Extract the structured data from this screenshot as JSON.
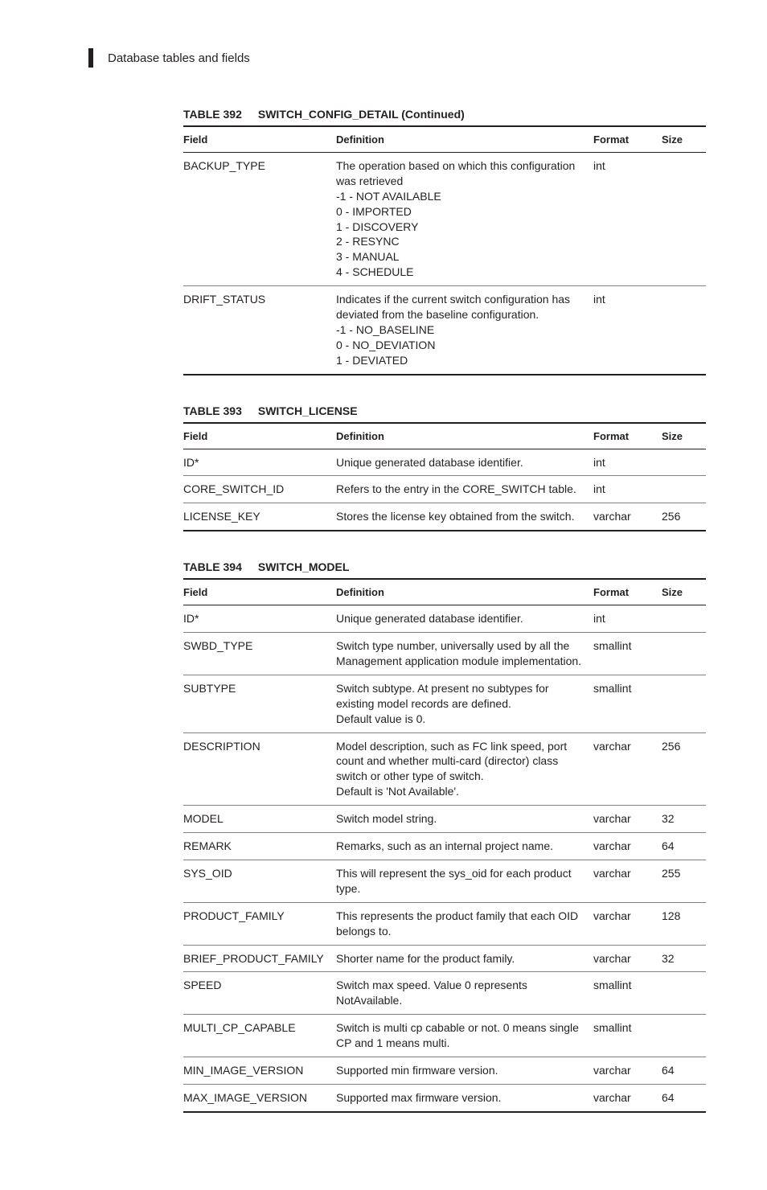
{
  "header": {
    "title": "Database tables and fields"
  },
  "columns": {
    "field": "Field",
    "definition": "Definition",
    "format": "Format",
    "size": "Size"
  },
  "tables": [
    {
      "number": "TABLE 392",
      "title": "SWITCH_CONFIG_DETAIL (Continued)",
      "rows": [
        {
          "field": "BACKUP_TYPE",
          "definition": [
            "The operation based on which this configuration was retrieved",
            "-1 - NOT AVAILABLE",
            "0 - IMPORTED",
            "1 - DISCOVERY",
            "2 - RESYNC",
            "3 - MANUAL",
            "4 - SCHEDULE"
          ],
          "format": "int",
          "size": ""
        },
        {
          "field": "DRIFT_STATUS",
          "definition": [
            "Indicates if the current switch configuration has deviated from the baseline configuration.",
            "-1 - NO_BASELINE",
            "0 - NO_DEVIATION",
            "1 - DEVIATED"
          ],
          "format": "int",
          "size": ""
        }
      ]
    },
    {
      "number": "TABLE 393",
      "title": "SWITCH_LICENSE",
      "rows": [
        {
          "field": "ID*",
          "definition": [
            "Unique generated database identifier."
          ],
          "format": "int",
          "size": ""
        },
        {
          "field": "CORE_SWITCH_ID",
          "definition": [
            "Refers to the entry in the CORE_SWITCH table."
          ],
          "format": "int",
          "size": ""
        },
        {
          "field": "LICENSE_KEY",
          "definition": [
            "Stores the license key obtained from the switch."
          ],
          "format": "varchar",
          "size": "256"
        }
      ]
    },
    {
      "number": "TABLE 394",
      "title": "SWITCH_MODEL",
      "rows": [
        {
          "field": "ID*",
          "definition": [
            "Unique generated database identifier."
          ],
          "format": "int",
          "size": ""
        },
        {
          "field": "SWBD_TYPE",
          "definition": [
            "Switch type number, universally used by all the Management application module implementation."
          ],
          "format": "smallint",
          "size": ""
        },
        {
          "field": "SUBTYPE",
          "definition": [
            "Switch subtype. At present no subtypes for existing model records are defined.",
            "Default value is 0."
          ],
          "format": "smallint",
          "size": ""
        },
        {
          "field": "DESCRIPTION",
          "definition": [
            "Model description, such as FC link speed, port count and whether multi-card (director) class switch or other type of switch.",
            "Default is 'Not Available'."
          ],
          "format": "varchar",
          "size": "256"
        },
        {
          "field": "MODEL",
          "definition": [
            "Switch model string."
          ],
          "format": "varchar",
          "size": "32"
        },
        {
          "field": "REMARK",
          "definition": [
            "Remarks, such as an internal project name."
          ],
          "format": "varchar",
          "size": "64"
        },
        {
          "field": "SYS_OID",
          "definition": [
            "This will represent the sys_oid for each product type."
          ],
          "format": "varchar",
          "size": "255"
        },
        {
          "field": "PRODUCT_FAMILY",
          "definition": [
            "This represents the product family that each OID belongs to."
          ],
          "format": "varchar",
          "size": "128"
        },
        {
          "field": "BRIEF_PRODUCT_FAMILY",
          "definition": [
            "Shorter name for the product family."
          ],
          "format": "varchar",
          "size": "32"
        },
        {
          "field": "SPEED",
          "definition": [
            "Switch max speed. Value 0 represents NotAvailable."
          ],
          "format": "smallint",
          "size": ""
        },
        {
          "field": "MULTI_CP_CAPABLE",
          "definition": [
            "Switch is multi cp cabable or not. 0 means single CP and 1 means multi."
          ],
          "format": "smallint",
          "size": ""
        },
        {
          "field": "MIN_IMAGE_VERSION",
          "definition": [
            "Supported min firmware version."
          ],
          "format": "varchar",
          "size": "64"
        },
        {
          "field": "MAX_IMAGE_VERSION",
          "definition": [
            "Supported max firmware version."
          ],
          "format": "varchar",
          "size": "64"
        }
      ]
    }
  ]
}
